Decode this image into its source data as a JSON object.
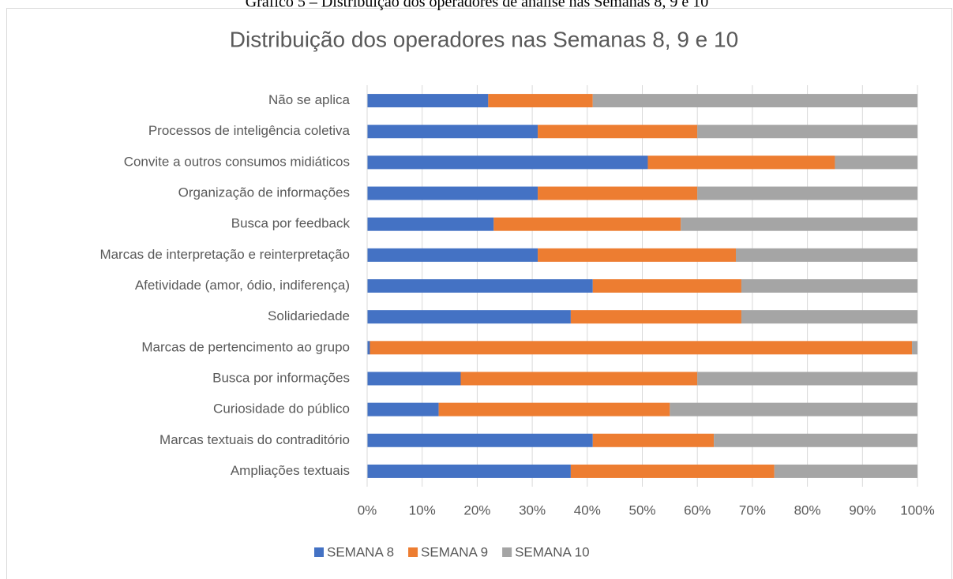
{
  "caption": "Gráfico 5 – Distribuição dos operadores de análise nas Semanas 8, 9 e 10",
  "chart_data": {
    "type": "stacked_barh",
    "title": "Distribuição dos operadores nas Semanas 8, 9 e 10",
    "categories": [
      "Não se aplica",
      "Processos de inteligência coletiva",
      "Convite a outros consumos midiáticos",
      "Organização de informações",
      "Busca por feedback",
      "Marcas de interpretação e reinterpretação",
      "Afetividade (amor, ódio, indiferença)",
      "Solidariedade",
      "Marcas de pertencimento ao grupo",
      "Busca por informações",
      "Curiosidade do público",
      "Marcas textuais do contraditório",
      "Ampliações textuais"
    ],
    "series": [
      {
        "name": "SEMANA 8",
        "color": "#4472c4",
        "values": [
          22,
          31,
          51,
          31,
          23,
          31,
          41,
          37,
          0.5,
          17,
          13,
          41,
          37
        ]
      },
      {
        "name": "SEMANA 9",
        "color": "#ed7d31",
        "values": [
          19,
          29,
          34,
          29,
          34,
          36,
          27,
          31,
          98.5,
          43,
          42,
          22,
          37
        ]
      },
      {
        "name": "SEMANA 10",
        "color": "#a5a5a5",
        "values": [
          59,
          40,
          15,
          40,
          43,
          33,
          32,
          32,
          1,
          40,
          45,
          37,
          26
        ]
      }
    ],
    "xlim": [
      0,
      100
    ],
    "xticks": [
      {
        "value": 0,
        "label": "0%"
      },
      {
        "value": 10,
        "label": "10%"
      },
      {
        "value": 20,
        "label": "20%"
      },
      {
        "value": 30,
        "label": "30%"
      },
      {
        "value": 40,
        "label": "40%"
      },
      {
        "value": 50,
        "label": "50%"
      },
      {
        "value": 60,
        "label": "60%"
      },
      {
        "value": 70,
        "label": "70%"
      },
      {
        "value": 80,
        "label": "80%"
      },
      {
        "value": 90,
        "label": "90%"
      },
      {
        "value": 100,
        "label": "100%"
      }
    ],
    "grid": true,
    "legend": "bottom"
  }
}
